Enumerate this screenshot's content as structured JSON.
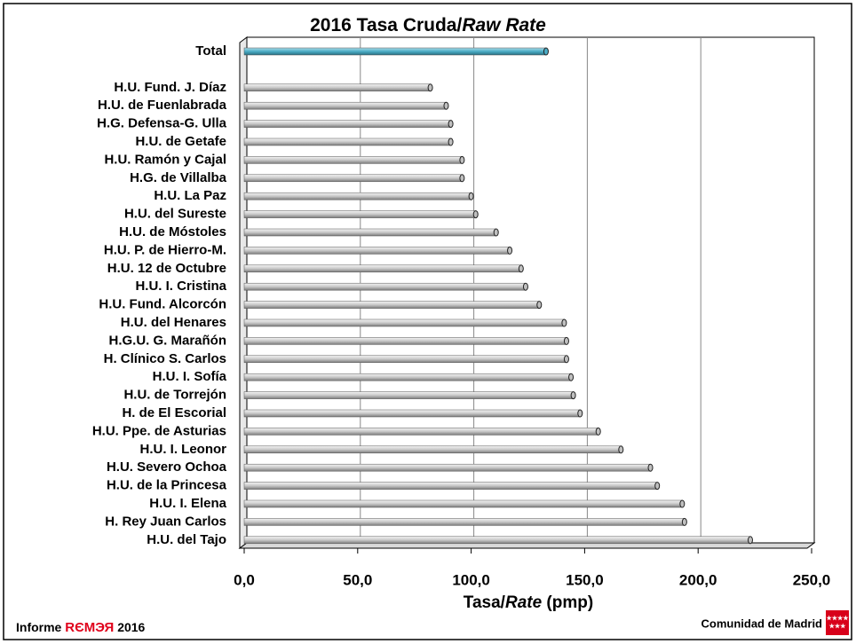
{
  "chart_data": {
    "type": "bar",
    "orientation": "horizontal",
    "title": [
      "2016 Tasa Cruda/",
      "Raw Rate"
    ],
    "x_label": [
      "Tasa/",
      "Rate",
      " (pmp)"
    ],
    "categories": [
      "Total",
      null,
      "H.U. Fund. J. Díaz",
      "H.U. de Fuenlabrada",
      "H.G. Defensa-G. Ulla",
      "H.U. de Getafe",
      "H.U. Ramón y Cajal",
      "H.G. de Villalba",
      "H.U. La Paz",
      "H.U. del Sureste",
      "H.U. de Móstoles",
      "H.U. P. de Hierro-M.",
      "H.U. 12 de Octubre",
      "H.U. I. Cristina",
      "H.U. Fund. Alcorcón",
      "H.U. del Henares",
      "H.G.U. G. Marañón",
      "H. Clínico S. Carlos",
      "H.U. I. Sofía",
      "H.U. de Torrejón",
      "H. de El Escorial",
      "H.U. Ppe. de Asturias",
      "H.U. I. Leonor",
      "H.U. Severo Ochoa",
      "H.U. de la Princesa",
      "H.U. I. Elena",
      "H. Rey Juan Carlos",
      "H.U. del Tajo"
    ],
    "values": [
      133,
      null,
      82,
      89,
      91,
      91,
      96,
      96,
      100,
      102,
      111,
      117,
      122,
      124,
      130,
      141,
      142,
      142,
      144,
      145,
      148,
      156,
      166,
      179,
      182,
      193,
      194,
      223
    ],
    "colors": [
      "#4bacc6",
      null,
      "#c0c0c0",
      "#c0c0c0",
      "#c0c0c0",
      "#c0c0c0",
      "#c0c0c0",
      "#c0c0c0",
      "#c0c0c0",
      "#c0c0c0",
      "#c0c0c0",
      "#c0c0c0",
      "#c0c0c0",
      "#c0c0c0",
      "#c0c0c0",
      "#c0c0c0",
      "#c0c0c0",
      "#c0c0c0",
      "#c0c0c0",
      "#c0c0c0",
      "#c0c0c0",
      "#c0c0c0",
      "#c0c0c0",
      "#c0c0c0",
      "#c0c0c0",
      "#c0c0c0",
      "#c0c0c0",
      "#c0c0c0"
    ],
    "xlim": [
      0,
      250
    ],
    "xticks": [
      {
        "value": 0,
        "label": "0,0"
      },
      {
        "value": 50,
        "label": "50,0"
      },
      {
        "value": 100,
        "label": "100,0"
      },
      {
        "value": 150,
        "label": "150,0"
      },
      {
        "value": 200,
        "label": "200,0"
      },
      {
        "value": 250,
        "label": "250,0"
      }
    ],
    "grid": true
  },
  "footer": {
    "left": [
      "Informe",
      "RЄMЭЯ",
      "2016"
    ],
    "right": "Comunidad de Madrid"
  }
}
